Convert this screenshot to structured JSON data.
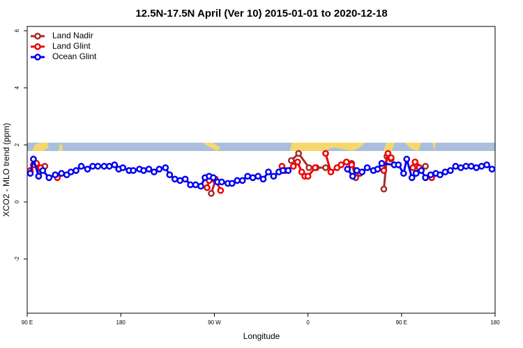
{
  "chart_data": {
    "type": "line",
    "title": "12.5N-17.5N April (Ver 10)   2015-01-01 to 2020-12-18",
    "xlabel": "Longitude",
    "ylabel": "XCO2 - MLO trend (ppm)",
    "xlim": [
      90,
      540
    ],
    "ylim": [
      -3.9,
      6.15
    ],
    "xticks": [
      {
        "value": 90,
        "label": "90 E"
      },
      180,
      {
        "value": 270,
        "label": "90 W"
      },
      {
        "value": 360,
        "label": "0"
      },
      {
        "value": 450,
        "label": "90 E"
      },
      {
        "value": 540,
        "label": "180"
      }
    ],
    "yticks": [
      -2,
      0,
      2,
      4,
      6
    ],
    "legend": "top-left",
    "series": [
      {
        "name": "Land Nadir",
        "color": "#a52a2a",
        "x": [
          96,
          102,
          107,
          null,
          267,
          271,
          null,
          344,
          351,
          361,
          368,
          377,
          null,
          402,
          406,
          null,
          433,
          436,
          440,
          null,
          465,
          473
        ],
        "values": [
          1.3,
          1.15,
          1.25,
          null,
          0.3,
          0.75,
          null,
          1.45,
          1.7,
          1.2,
          1.2,
          1.2,
          null,
          1.35,
          0.85,
          null,
          0.45,
          1.6,
          1.5,
          null,
          1.25,
          1.25
        ]
      },
      {
        "name": "Land Glint",
        "color": "#ee0000",
        "x": [
          93,
          96,
          99,
          103,
          null,
          119,
          null,
          263,
          265,
          271,
          276,
          null,
          335,
          338,
          346,
          350,
          354,
          357,
          360,
          367,
          null,
          377,
          382,
          388,
          392,
          397,
          402,
          410,
          null,
          433,
          437,
          440,
          null,
          461,
          463,
          467,
          null,
          479
        ],
        "values": [
          1.1,
          1.3,
          1.35,
          1.2,
          null,
          0.85,
          null,
          0.5,
          0.75,
          0.8,
          0.4,
          null,
          1.25,
          1.1,
          1.25,
          1.4,
          1.05,
          0.9,
          0.9,
          1.2,
          null,
          1.7,
          1.05,
          1.2,
          1.3,
          1.4,
          1.3,
          1.0,
          null,
          1.1,
          1.7,
          1.55,
          null,
          1.2,
          1.4,
          1.2,
          null,
          0.85
        ]
      },
      {
        "name": "Ocean Glint",
        "color": "#0000ee",
        "x": [
          93,
          96,
          101,
          105,
          111,
          117,
          123,
          128,
          132,
          137,
          142,
          148,
          153,
          158,
          164,
          169,
          174,
          178,
          182,
          188,
          192,
          198,
          202,
          207,
          212,
          217,
          223,
          227,
          232,
          237,
          242,
          247,
          252,
          257,
          261,
          265,
          269,
          273,
          277,
          283,
          287,
          292,
          297,
          302,
          307,
          312,
          317,
          322,
          327,
          332,
          336,
          341,
          null,
          398,
          403,
          407,
          412,
          417,
          423,
          427,
          431,
          443,
          447,
          452,
          455,
          460,
          464,
          469,
          473,
          478,
          483,
          487,
          492,
          497,
          502,
          507,
          512,
          517,
          522,
          527,
          532,
          537
        ],
        "values": [
          1.0,
          1.5,
          0.9,
          1.1,
          0.85,
          0.95,
          1.0,
          0.95,
          1.05,
          1.1,
          1.25,
          1.15,
          1.25,
          1.25,
          1.25,
          1.25,
          1.3,
          1.15,
          1.2,
          1.1,
          1.1,
          1.15,
          1.1,
          1.15,
          1.05,
          1.15,
          1.2,
          0.95,
          0.8,
          0.75,
          0.8,
          0.6,
          0.6,
          0.55,
          0.85,
          0.9,
          0.85,
          0.7,
          0.7,
          0.65,
          0.65,
          0.75,
          0.75,
          0.9,
          0.85,
          0.9,
          0.8,
          1.05,
          0.9,
          1.05,
          1.1,
          1.1,
          null,
          1.15,
          0.9,
          1.1,
          1.05,
          1.2,
          1.1,
          1.15,
          1.35,
          1.3,
          1.3,
          1.0,
          1.5,
          0.85,
          1.0,
          1.1,
          0.85,
          0.95,
          1.0,
          0.95,
          1.05,
          1.1,
          1.25,
          1.2,
          1.25,
          1.25,
          1.2,
          1.25,
          1.3,
          1.15
        ]
      }
    ]
  }
}
